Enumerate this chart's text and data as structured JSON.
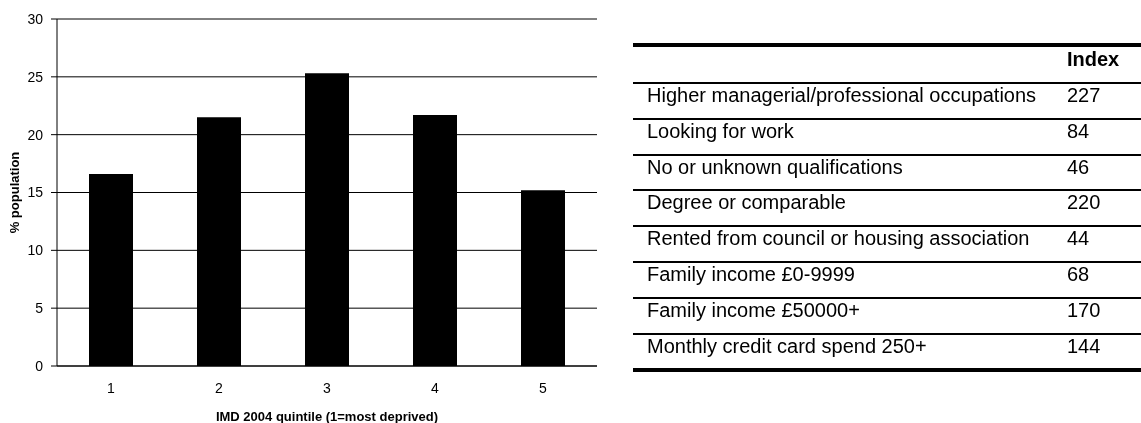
{
  "chart_data": [
    {
      "type": "bar",
      "categories": [
        "1",
        "2",
        "3",
        "4",
        "5"
      ],
      "values": [
        16.6,
        21.5,
        25.3,
        21.7,
        15.2
      ],
      "color": "#000000",
      "xlabel": "IMD 2004 quintile (1=most deprived)",
      "ylabel": "% population",
      "ylim": [
        0,
        30
      ],
      "yticks": [
        0,
        5,
        10,
        15,
        20,
        25,
        30
      ],
      "grid": "y"
    },
    {
      "type": "other",
      "categories": [
        "Higher managerial/professional occupations",
        "Looking for work",
        "No or unknown qualifications",
        "Degree or comparable",
        "Rented from council or housing association",
        "Family income £0-9999",
        "Family income £50000+",
        "Monthly credit card spend 250+"
      ],
      "series": [
        {
          "name": "Index",
          "values": [
            227,
            84,
            46,
            220,
            44,
            68,
            170,
            144
          ]
        }
      ],
      "data_labels": true
    }
  ]
}
